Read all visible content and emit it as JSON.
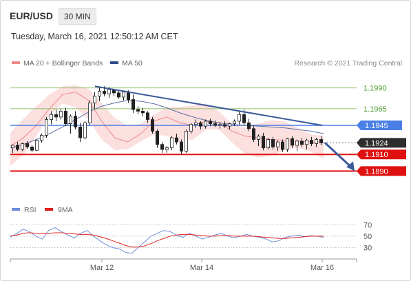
{
  "header": {
    "symbol": "EUR/USD",
    "timeframe": "30 MIN",
    "datetime": "Tuesday, March 16, 2021 12:50:12 AM CET"
  },
  "legend": {
    "bollinger": "MA 20 + Bollinger Bands",
    "ma50": "MA 50",
    "credit": "Research © 2021 Trading Central",
    "rsi": "RSI",
    "ma9": "9MA"
  },
  "colors": {
    "band_fill": "#fbd9d9",
    "band_line": "#f08a8a",
    "ma50": "#5a6fa0",
    "trendline": "#3b5a9a",
    "resistance_green": "#8fc06a",
    "resistance_label": "#4a9a2a",
    "pivot_blue": "#4a7fe6",
    "support_red": "#e01010",
    "candle_up": "#ffffff",
    "candle_down": "#222222",
    "rsi_line": "#6f8fd9",
    "rsi_ma": "#e02020"
  },
  "chart_data": [
    {
      "type": "candlestick",
      "x_tick_labels": [
        "Mar 12",
        "Mar 14",
        "Mar 16"
      ],
      "ylim": [
        1.1858,
        1.1998
      ],
      "levels": [
        {
          "label": "1.1990",
          "value": 1.199,
          "kind": "resistance"
        },
        {
          "label": "1.1965",
          "value": 1.1965,
          "kind": "resistance"
        },
        {
          "label": "1.1945",
          "value": 1.1945,
          "kind": "pivot"
        },
        {
          "label": "1.1924",
          "value": 1.1924,
          "kind": "last-price"
        },
        {
          "label": "1.1910",
          "value": 1.191,
          "kind": "support"
        },
        {
          "label": "1.1890",
          "value": 1.189,
          "kind": "support"
        }
      ],
      "series": [
        {
          "name": "MA 50",
          "values": [
            1.1918,
            1.1922,
            1.1928,
            1.1935,
            1.1943,
            1.1952,
            1.1961,
            1.1968,
            1.1972,
            1.1975,
            1.1974,
            1.1971,
            1.1966,
            1.196,
            1.1955,
            1.1951,
            1.1948,
            1.1946,
            1.1945,
            1.1944,
            1.1943,
            1.1942,
            1.194,
            1.1938,
            1.1935
          ]
        },
        {
          "name": "MA 20 + Bollinger Bands",
          "values": [
            1.192,
            1.193,
            1.1945,
            1.1965,
            1.1982,
            1.1985,
            1.1975,
            1.195,
            1.193,
            1.1925,
            1.1935,
            1.195,
            1.1955,
            1.1948,
            1.1945,
            1.195,
            1.1948,
            1.1938,
            1.1932,
            1.193,
            1.1928,
            1.1927,
            1.1926,
            1.1925,
            1.1924
          ]
        }
      ],
      "candles": [
        [
          1.1918,
          1.1922,
          1.1912,
          1.1921
        ],
        [
          1.1921,
          1.1925,
          1.1914,
          1.1916
        ],
        [
          1.1916,
          1.1924,
          1.1914,
          1.1923
        ],
        [
          1.1923,
          1.1926,
          1.1917,
          1.1919
        ],
        [
          1.1919,
          1.1921,
          1.1913,
          1.1915
        ],
        [
          1.1915,
          1.1928,
          1.1914,
          1.1927
        ],
        [
          1.1927,
          1.1935,
          1.1924,
          1.1933
        ],
        [
          1.1933,
          1.1955,
          1.193,
          1.1952
        ],
        [
          1.1952,
          1.1962,
          1.1946,
          1.1958
        ],
        [
          1.1958,
          1.1964,
          1.195,
          1.1955
        ],
        [
          1.1955,
          1.1965,
          1.1952,
          1.1962
        ],
        [
          1.1962,
          1.1966,
          1.1944,
          1.1947
        ],
        [
          1.1947,
          1.1958,
          1.1935,
          1.1956
        ],
        [
          1.1956,
          1.1962,
          1.194,
          1.1943
        ],
        [
          1.1943,
          1.1948,
          1.1925,
          1.193
        ],
        [
          1.193,
          1.195,
          1.1928,
          1.1948
        ],
        [
          1.1948,
          1.1975,
          1.1945,
          1.1972
        ],
        [
          1.1972,
          1.1985,
          1.1965,
          1.198
        ],
        [
          1.198,
          1.199,
          1.1974,
          1.1986
        ],
        [
          1.1986,
          1.1992,
          1.198,
          1.1983
        ],
        [
          1.1983,
          1.1991,
          1.1978,
          1.1988
        ],
        [
          1.1988,
          1.1989,
          1.198,
          1.1984
        ],
        [
          1.1984,
          1.1988,
          1.1977,
          1.1979
        ],
        [
          1.1979,
          1.1986,
          1.1975,
          1.1985
        ],
        [
          1.1985,
          1.1987,
          1.1972,
          1.1976
        ],
        [
          1.1976,
          1.1982,
          1.196,
          1.1964
        ],
        [
          1.1964,
          1.1968,
          1.1958,
          1.1962
        ],
        [
          1.1962,
          1.1966,
          1.1956,
          1.196
        ],
        [
          1.196,
          1.1962,
          1.1948,
          1.1952
        ],
        [
          1.1952,
          1.1955,
          1.1935,
          1.1938
        ],
        [
          1.1938,
          1.194,
          1.1918,
          1.1922
        ],
        [
          1.1922,
          1.1925,
          1.1912,
          1.1916
        ],
        [
          1.1916,
          1.192,
          1.1912,
          1.1918
        ],
        [
          1.1918,
          1.1932,
          1.1915,
          1.193
        ],
        [
          1.193,
          1.1935,
          1.1922,
          1.1925
        ],
        [
          1.1925,
          1.1928,
          1.191,
          1.1914
        ],
        [
          1.1914,
          1.194,
          1.1912,
          1.1938
        ],
        [
          1.1938,
          1.1948,
          1.1935,
          1.1946
        ],
        [
          1.1946,
          1.1952,
          1.1942,
          1.1948
        ],
        [
          1.1948,
          1.195,
          1.194,
          1.1944
        ],
        [
          1.1944,
          1.1952,
          1.1941,
          1.195
        ],
        [
          1.195,
          1.1953,
          1.1944,
          1.1947
        ],
        [
          1.1947,
          1.1951,
          1.1943,
          1.1945
        ],
        [
          1.1945,
          1.1949,
          1.1941,
          1.1946
        ],
        [
          1.1946,
          1.195,
          1.1942,
          1.1944
        ],
        [
          1.1944,
          1.1948,
          1.194,
          1.1947
        ],
        [
          1.1947,
          1.1952,
          1.1944,
          1.195
        ],
        [
          1.195,
          1.1962,
          1.1946,
          1.1958
        ],
        [
          1.1958,
          1.1964,
          1.1945,
          1.1948
        ],
        [
          1.1948,
          1.1953,
          1.1938,
          1.1941
        ],
        [
          1.1941,
          1.1945,
          1.1925,
          1.1928
        ],
        [
          1.1928,
          1.1934,
          1.192,
          1.1932
        ],
        [
          1.1932,
          1.1936,
          1.1915,
          1.1918
        ],
        [
          1.1918,
          1.193,
          1.1916,
          1.1928
        ],
        [
          1.1928,
          1.1931,
          1.1916,
          1.1919
        ],
        [
          1.1919,
          1.1927,
          1.1914,
          1.1925
        ],
        [
          1.1925,
          1.1928,
          1.1913,
          1.1916
        ],
        [
          1.1916,
          1.193,
          1.1913,
          1.1929
        ],
        [
          1.1929,
          1.1932,
          1.1918,
          1.1921
        ],
        [
          1.1921,
          1.1928,
          1.1914,
          1.1926
        ],
        [
          1.1926,
          1.193,
          1.1919,
          1.1922
        ],
        [
          1.1922,
          1.1929,
          1.1916,
          1.1927
        ],
        [
          1.1927,
          1.1931,
          1.192,
          1.1923
        ],
        [
          1.1923,
          1.193,
          1.1919,
          1.1928
        ],
        [
          1.1928,
          1.1932,
          1.1921,
          1.1924
        ]
      ]
    },
    {
      "type": "line",
      "y_tick_labels": [
        "70",
        "50",
        "30"
      ],
      "ylim": [
        15,
        80
      ],
      "series": [
        {
          "name": "RSI",
          "values": [
            48,
            55,
            62,
            58,
            50,
            45,
            60,
            65,
            58,
            52,
            47,
            55,
            60,
            50,
            42,
            35,
            30,
            28,
            22,
            20,
            30,
            40,
            50,
            55,
            60,
            58,
            52,
            48,
            55,
            50,
            45,
            48,
            52,
            55,
            50,
            47,
            50,
            53,
            50,
            48,
            45,
            40,
            42,
            48,
            50,
            52,
            49,
            51,
            50,
            48
          ]
        },
        {
          "name": "9MA",
          "values": [
            50,
            52,
            55,
            56,
            55,
            54,
            55,
            56,
            56,
            55,
            54,
            53,
            53,
            52,
            49,
            46,
            42,
            38,
            34,
            31,
            31,
            33,
            37,
            42,
            46,
            50,
            52,
            53,
            53,
            52,
            51,
            50,
            50,
            51,
            51,
            50,
            50,
            50,
            50,
            49,
            48,
            47,
            46,
            46,
            47,
            48,
            49,
            50,
            50,
            50
          ]
        }
      ]
    }
  ]
}
